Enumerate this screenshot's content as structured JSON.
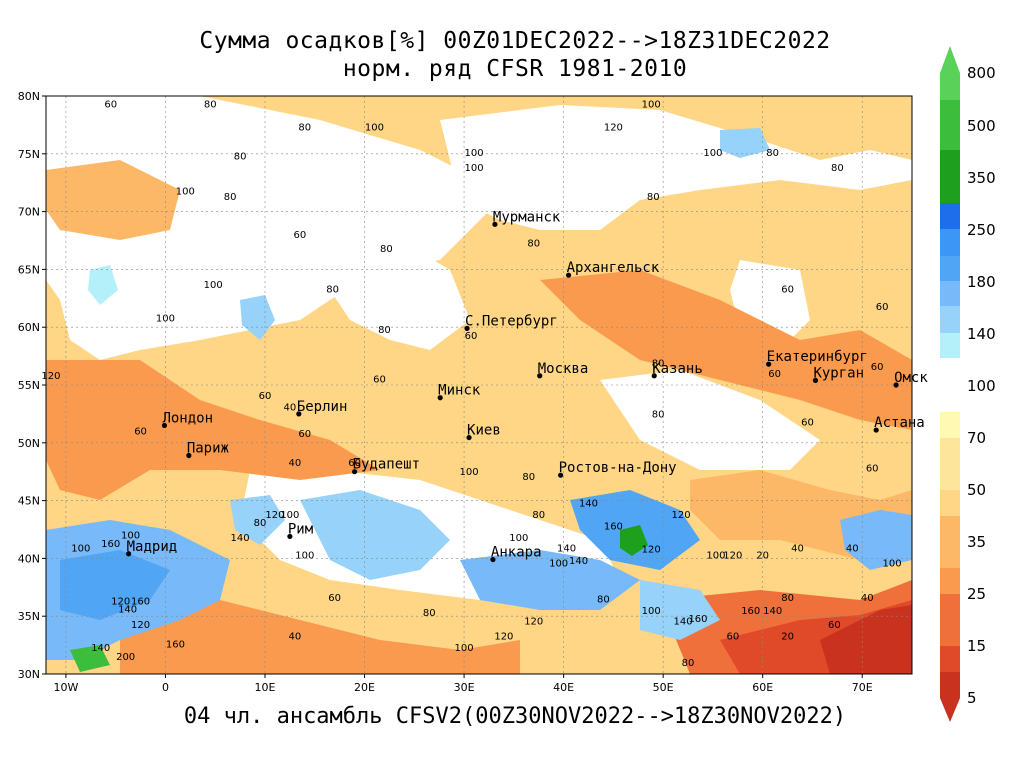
{
  "title_line1": "Сумма осадков[%] 00Z01DEC2022-->18Z31DEC2022",
  "title_line2": "норм. ряд CFSR 1981-2010",
  "footer": "04 чл. ансамбль CFSV2(00Z30NOV2022-->18Z30NOV2022)",
  "lat_labels": [
    "30N",
    "35N",
    "40N",
    "45N",
    "50N",
    "55N",
    "60N",
    "65N",
    "70N",
    "75N",
    "80N"
  ],
  "lon_labels": [
    "10W",
    "0",
    "10E",
    "20E",
    "30E",
    "40E",
    "50E",
    "60E",
    "70E"
  ],
  "colorbar": {
    "labels": [
      "800",
      "500",
      "350",
      "250",
      "180",
      "140",
      "100",
      "70",
      "50",
      "35",
      "25",
      "15",
      "5"
    ],
    "wet_colors": [
      "#b4f0fa",
      "#96d2fa",
      "#78b9fa",
      "#50a5f5",
      "#3c96f5",
      "#1e6eeb",
      "#1ea01e",
      "#3cbe3c",
      "#5ad25a"
    ],
    "dry_colors": [
      "#fff9b4",
      "#fee59c",
      "#fed685",
      "#fdb867",
      "#f99a4e",
      "#f0703c",
      "#e14a28",
      "#c8321e"
    ]
  },
  "cities": [
    {
      "name": "Мурманск",
      "lon": 33.1,
      "lat": 68.9
    },
    {
      "name": "Архангельск",
      "lon": 40.5,
      "lat": 64.5
    },
    {
      "name": "С.Петербург",
      "lon": 30.3,
      "lat": 59.9
    },
    {
      "name": "Москва",
      "lon": 37.6,
      "lat": 55.8
    },
    {
      "name": "Казань",
      "lon": 49.1,
      "lat": 55.8
    },
    {
      "name": "Екатеринбург",
      "lon": 60.6,
      "lat": 56.8
    },
    {
      "name": "Курган",
      "lon": 65.3,
      "lat": 55.4
    },
    {
      "name": "Омск",
      "lon": 73.4,
      "lat": 55.0
    },
    {
      "name": "Астана",
      "lon": 71.4,
      "lat": 51.1
    },
    {
      "name": "Минск",
      "lon": 27.6,
      "lat": 53.9
    },
    {
      "name": "Берлин",
      "lon": 13.4,
      "lat": 52.5
    },
    {
      "name": "Лондон",
      "lon": -0.1,
      "lat": 51.5
    },
    {
      "name": "Париж",
      "lon": 2.35,
      "lat": 48.9
    },
    {
      "name": "Киев",
      "lon": 30.5,
      "lat": 50.45
    },
    {
      "name": "Ростов-на-Дону",
      "lon": 39.7,
      "lat": 47.2
    },
    {
      "name": "Будапешт",
      "lon": 19.0,
      "lat": 47.5
    },
    {
      "name": "Рим",
      "lon": 12.5,
      "lat": 41.9
    },
    {
      "name": "Мадрид",
      "lon": -3.7,
      "lat": 40.4
    },
    {
      "name": "Анкара",
      "lon": 32.9,
      "lat": 39.9
    }
  ],
  "contour_labels": [
    {
      "t": "60",
      "lon": -5.5,
      "lat": 79.0
    },
    {
      "t": "80",
      "lon": 4.5,
      "lat": 79.0
    },
    {
      "t": "100",
      "lon": 48.8,
      "lat": 79.0
    },
    {
      "t": "120",
      "lon": 45.0,
      "lat": 77.0
    },
    {
      "t": "80",
      "lon": 14.0,
      "lat": 77.0
    },
    {
      "t": "100",
      "lon": 21.0,
      "lat": 77.0
    },
    {
      "t": "80",
      "lon": 7.5,
      "lat": 74.5
    },
    {
      "t": "100",
      "lon": 31.0,
      "lat": 74.8
    },
    {
      "t": "100",
      "lon": 31.0,
      "lat": 73.5
    },
    {
      "t": "100",
      "lon": 55.0,
      "lat": 74.8
    },
    {
      "t": "80",
      "lon": 61.0,
      "lat": 74.8
    },
    {
      "t": "80",
      "lon": 67.5,
      "lat": 73.5
    },
    {
      "t": "100",
      "lon": 2.0,
      "lat": 71.5
    },
    {
      "t": "80",
      "lon": 6.5,
      "lat": 71.0
    },
    {
      "t": "80",
      "lon": 49.0,
      "lat": 71.0
    },
    {
      "t": "80",
      "lon": 37.0,
      "lat": 67.0
    },
    {
      "t": "60",
      "lon": 13.5,
      "lat": 67.7
    },
    {
      "t": "80",
      "lon": 22.2,
      "lat": 66.5
    },
    {
      "t": "100",
      "lon": 4.8,
      "lat": 63.4
    },
    {
      "t": "80",
      "lon": 16.8,
      "lat": 63.0
    },
    {
      "t": "100",
      "lon": 0.0,
      "lat": 60.5
    },
    {
      "t": "60",
      "lon": 62.5,
      "lat": 63.0
    },
    {
      "t": "60",
      "lon": 72.0,
      "lat": 61.5
    },
    {
      "t": "80",
      "lon": 22.0,
      "lat": 59.5
    },
    {
      "t": "60",
      "lon": 30.7,
      "lat": 59.0
    },
    {
      "t": "80",
      "lon": 49.5,
      "lat": 56.6
    },
    {
      "t": "60",
      "lon": 61.2,
      "lat": 55.7
    },
    {
      "t": "60",
      "lon": 71.5,
      "lat": 56.3
    },
    {
      "t": "60",
      "lon": 21.5,
      "lat": 55.2
    },
    {
      "t": "60",
      "lon": 10.0,
      "lat": 53.8
    },
    {
      "t": "40",
      "lon": 12.5,
      "lat": 52.8
    },
    {
      "t": "80",
      "lon": 49.5,
      "lat": 52.2
    },
    {
      "t": "60",
      "lon": 64.5,
      "lat": 51.5
    },
    {
      "t": "60",
      "lon": -2.5,
      "lat": 50.7
    },
    {
      "t": "60",
      "lon": 14.0,
      "lat": 50.5
    },
    {
      "t": "40",
      "lon": 13.0,
      "lat": 48.0
    },
    {
      "t": "60",
      "lon": 19.0,
      "lat": 48.0
    },
    {
      "t": "100",
      "lon": 30.5,
      "lat": 47.2
    },
    {
      "t": "80",
      "lon": 36.5,
      "lat": 46.8
    },
    {
      "t": "140",
      "lon": 42.5,
      "lat": 44.5
    },
    {
      "t": "60",
      "lon": 71.0,
      "lat": 47.5
    },
    {
      "t": "100",
      "lon": 12.5,
      "lat": 43.5
    },
    {
      "t": "80",
      "lon": 9.5,
      "lat": 42.8
    },
    {
      "t": "120",
      "lon": 11.0,
      "lat": 43.5
    },
    {
      "t": "80",
      "lon": 37.5,
      "lat": 43.5
    },
    {
      "t": "160",
      "lon": 45.0,
      "lat": 42.5
    },
    {
      "t": "120",
      "lon": 51.8,
      "lat": 43.5
    },
    {
      "t": "100",
      "lon": -3.5,
      "lat": 41.7
    },
    {
      "t": "140",
      "lon": 7.5,
      "lat": 41.5
    },
    {
      "t": "100",
      "lon": 35.5,
      "lat": 41.5
    },
    {
      "t": "100",
      "lon": -8.5,
      "lat": 40.6
    },
    {
      "t": "160",
      "lon": -5.5,
      "lat": 41.0
    },
    {
      "t": "140",
      "lon": 40.3,
      "lat": 40.6
    },
    {
      "t": "120",
      "lon": 48.8,
      "lat": 40.5
    },
    {
      "t": "40",
      "lon": 63.5,
      "lat": 40.6
    },
    {
      "t": "40",
      "lon": 69.0,
      "lat": 40.6
    },
    {
      "t": "20",
      "lon": 60.0,
      "lat": 40.0
    },
    {
      "t": "100",
      "lon": 14.0,
      "lat": 40.0
    },
    {
      "t": "100",
      "lon": 39.5,
      "lat": 39.3
    },
    {
      "t": "140",
      "lon": 41.5,
      "lat": 39.5
    },
    {
      "t": "100",
      "lon": 55.3,
      "lat": 40.0
    },
    {
      "t": "120",
      "lon": 57.0,
      "lat": 40.0
    },
    {
      "t": "100",
      "lon": 73.0,
      "lat": 39.3
    },
    {
      "t": "160",
      "lon": -2.5,
      "lat": 36.0
    },
    {
      "t": "120",
      "lon": -4.5,
      "lat": 36.0
    },
    {
      "t": "140",
      "lon": -3.8,
      "lat": 35.3
    },
    {
      "t": "60",
      "lon": 17.0,
      "lat": 36.3
    },
    {
      "t": "80",
      "lon": 44.0,
      "lat": 36.2
    },
    {
      "t": "80",
      "lon": 62.5,
      "lat": 36.3
    },
    {
      "t": "40",
      "lon": 70.5,
      "lat": 36.3
    },
    {
      "t": "100",
      "lon": 48.8,
      "lat": 35.2
    },
    {
      "t": "160",
      "lon": 53.5,
      "lat": 34.5
    },
    {
      "t": "140",
      "lon": 52.0,
      "lat": 34.3
    },
    {
      "t": "160",
      "lon": 58.8,
      "lat": 35.2
    },
    {
      "t": "140",
      "lon": 61.0,
      "lat": 35.2
    },
    {
      "t": "120",
      "lon": 37.0,
      "lat": 34.3
    },
    {
      "t": "120",
      "lon": -2.5,
      "lat": 34.0
    },
    {
      "t": "80",
      "lon": 26.5,
      "lat": 35.0
    },
    {
      "t": "60",
      "lon": 57.0,
      "lat": 33.0
    },
    {
      "t": "20",
      "lon": 62.5,
      "lat": 33.0
    },
    {
      "t": "60",
      "lon": 67.2,
      "lat": 34.0
    },
    {
      "t": "40",
      "lon": 13.0,
      "lat": 33.0
    },
    {
      "t": "120",
      "lon": 34.0,
      "lat": 33.0
    },
    {
      "t": "100",
      "lon": 30.0,
      "lat": 32.0
    },
    {
      "t": "160",
      "lon": 1.0,
      "lat": 32.3
    },
    {
      "t": "140",
      "lon": -6.5,
      "lat": 32.0
    },
    {
      "t": "200",
      "lon": -4.0,
      "lat": 31.2
    },
    {
      "t": "80",
      "lon": 52.5,
      "lat": 30.7
    },
    {
      "t": "120",
      "lon": -11.5,
      "lat": 55.5
    }
  ]
}
